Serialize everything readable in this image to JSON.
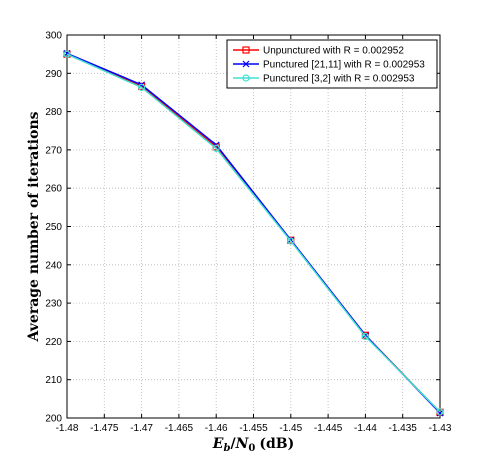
{
  "chart_data": {
    "type": "line",
    "title": "",
    "xlabel": {
      "var1": "E",
      "sub1": "b",
      "slash": "/",
      "var2": "N",
      "sub2": "0",
      "unit": "(dB)"
    },
    "ylabel": "Average number of iterations",
    "xlim": [
      -1.48,
      -1.43
    ],
    "ylim": [
      200,
      300
    ],
    "x_ticks": [
      "-1.48",
      "-1.475",
      "-1.47",
      "-1.465",
      "-1.46",
      "-1.455",
      "-1.45",
      "-1.445",
      "-1.44",
      "-1.435",
      "-1.43"
    ],
    "y_ticks": [
      "200",
      "210",
      "220",
      "230",
      "240",
      "250",
      "260",
      "270",
      "280",
      "290",
      "300"
    ],
    "grid": true,
    "legend_position": "top-right",
    "x": [
      -1.48,
      -1.47,
      -1.46,
      -1.45,
      -1.44,
      -1.43
    ],
    "series": [
      {
        "name": "Unpunctured with R = 0.002952",
        "color": "#ff0000",
        "marker": "square",
        "values": [
          295.0,
          286.6,
          270.8,
          246.4,
          221.6,
          201.5
        ]
      },
      {
        "name": "Punctured [21,11] with R = 0.002953",
        "color": "#0000ff",
        "marker": "x",
        "values": [
          295.2,
          287.0,
          271.3,
          246.5,
          221.6,
          201.3
        ]
      },
      {
        "name": "Punctured [3,2] with R = 0.002953",
        "color": "#40e0d0",
        "marker": "circle",
        "values": [
          295.0,
          286.3,
          270.4,
          246.2,
          221.3,
          201.6
        ]
      }
    ]
  }
}
